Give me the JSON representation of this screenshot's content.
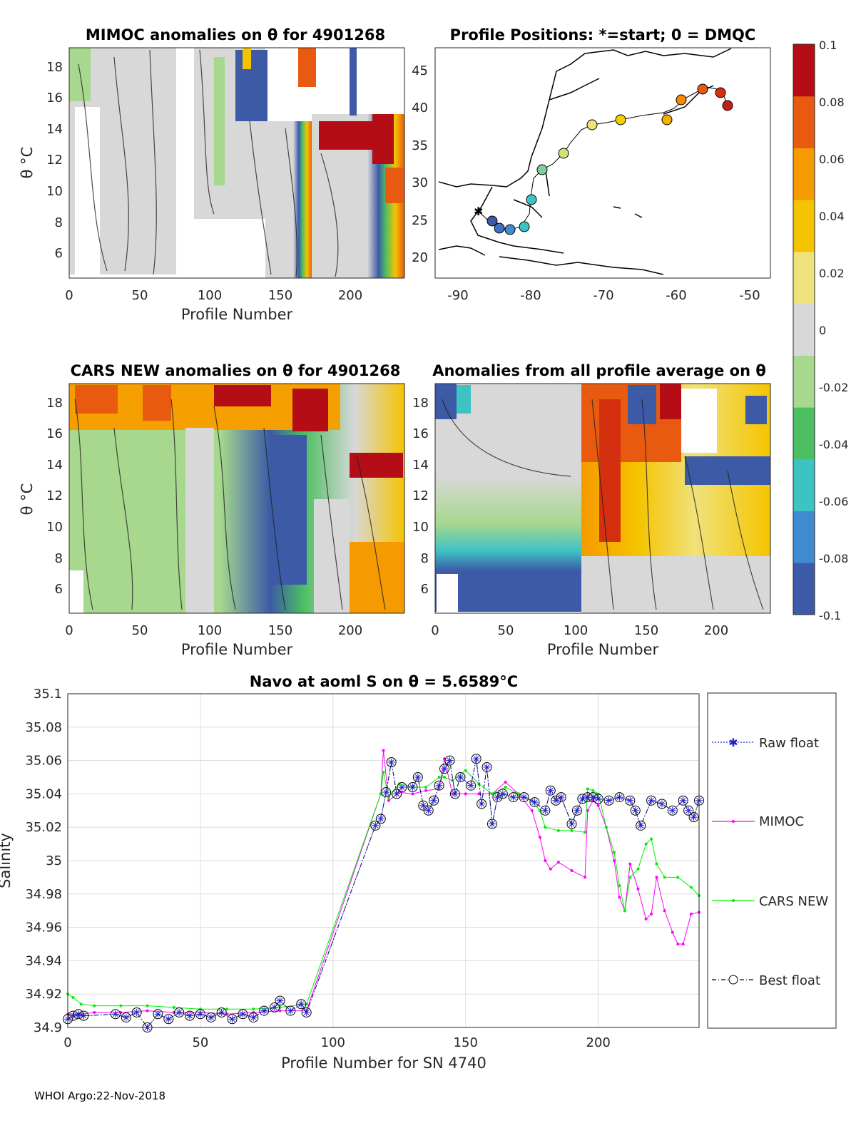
{
  "footer": "WHOI Argo:22-Nov-2018",
  "colorbar": {
    "ticks": [
      "0.1",
      "0.08",
      "0.06",
      "0.04",
      "0.02",
      "0",
      "-0.02",
      "-0.04",
      "-0.06",
      "-0.08",
      "-0.1"
    ],
    "colors": [
      "#3c5aa6",
      "#3f8ad0",
      "#3ec3c3",
      "#4dbf63",
      "#a7d88e",
      "#d8d8d8",
      "#f0e27a",
      "#f5c400",
      "#f59a00",
      "#e85a10",
      "#b40d16"
    ]
  },
  "panels": {
    "mimoc": {
      "title": "MIMOC anomalies on θ  for 4901268",
      "ylabel": "θ °C",
      "xlabel": "Profile Number",
      "xticks": [
        "0",
        "50",
        "100",
        "150",
        "200"
      ],
      "yticks": [
        "6",
        "8",
        "10",
        "12",
        "14",
        "16",
        "18"
      ]
    },
    "map": {
      "title": "Profile Positions: *=start; 0 = DMQC",
      "xticks": [
        "-90",
        "-80",
        "-70",
        "-60",
        "-50"
      ],
      "yticks": [
        "20",
        "25",
        "30",
        "35",
        "40",
        "45"
      ]
    },
    "cars": {
      "title": "CARS NEW anomalies on θ for 4901268",
      "ylabel": "θ °C",
      "xlabel": "Profile Number",
      "xticks": [
        "0",
        "50",
        "100",
        "150",
        "200"
      ],
      "yticks": [
        "6",
        "8",
        "10",
        "12",
        "14",
        "16",
        "18"
      ]
    },
    "allavg": {
      "title": "Anomalies from all profile average on θ",
      "xlabel": "Profile Number",
      "xticks": [
        "0",
        "50",
        "100",
        "150",
        "200"
      ],
      "yticks": [
        "6",
        "8",
        "10",
        "12",
        "14",
        "16",
        "18"
      ]
    }
  },
  "chart_data": {
    "type": "line",
    "title": "Navo at aoml S on θ = 5.6589°C",
    "xlabel": "Profile Number for SN 4740",
    "ylabel": "Salinity",
    "xlim": [
      0,
      238
    ],
    "ylim": [
      34.9,
      35.1
    ],
    "xticks": [
      0,
      50,
      100,
      150,
      200
    ],
    "yticks": [
      34.9,
      34.92,
      34.94,
      34.96,
      34.98,
      35,
      35.02,
      35.04,
      35.06,
      35.08,
      35.1
    ],
    "ytick_labels": [
      "34.9",
      "34.92",
      "34.94",
      "34.96",
      "34.98",
      "35",
      "35.02",
      "35.04",
      "35.06",
      "35.08",
      "35.1"
    ],
    "grid": true,
    "legend": [
      "Raw float",
      "MIMOC",
      "CARS NEW",
      "Best float"
    ],
    "legend_position": "outside-right",
    "series": [
      {
        "name": "Best float",
        "x": [
          0,
          2,
          4,
          6,
          18,
          22,
          26,
          30,
          34,
          38,
          42,
          46,
          50,
          54,
          58,
          62,
          66,
          70,
          74,
          78,
          80,
          84,
          88,
          90,
          116,
          118,
          120,
          122,
          124,
          126,
          130,
          132,
          134,
          136,
          138,
          140,
          142,
          144,
          146,
          148,
          152,
          154,
          156,
          158,
          160,
          162,
          164,
          168,
          172,
          176,
          180,
          182,
          184,
          186,
          190,
          192,
          194,
          196,
          198,
          200,
          204,
          208,
          212,
          214,
          216,
          220,
          224,
          228,
          232,
          234,
          236,
          238
        ],
        "y": [
          34.905,
          34.907,
          34.908,
          34.907,
          34.908,
          34.906,
          34.909,
          34.9,
          34.908,
          34.905,
          34.909,
          34.907,
          34.908,
          34.906,
          34.909,
          34.905,
          34.908,
          34.906,
          34.91,
          34.912,
          34.916,
          34.91,
          34.914,
          34.909,
          35.021,
          35.025,
          35.041,
          35.059,
          35.04,
          35.044,
          35.044,
          35.05,
          35.033,
          35.03,
          35.036,
          35.045,
          35.055,
          35.06,
          35.04,
          35.05,
          35.045,
          35.061,
          35.034,
          35.056,
          35.022,
          35.038,
          35.04,
          35.038,
          35.038,
          35.035,
          35.03,
          35.042,
          35.036,
          35.038,
          35.022,
          35.03,
          35.037,
          35.038,
          35.038,
          35.037,
          35.036,
          35.038,
          35.036,
          35.03,
          35.021,
          35.036,
          35.034,
          35.03,
          35.036,
          35.03,
          35.026,
          35.036
        ]
      },
      {
        "name": "Raw float",
        "x": [
          0,
          2,
          4,
          6,
          18,
          22,
          26,
          30,
          34,
          38,
          42,
          46,
          50,
          54,
          58,
          62,
          66,
          70,
          74,
          78,
          80,
          84,
          88,
          90,
          116,
          118,
          120,
          122,
          124,
          126,
          130,
          132,
          134,
          136,
          138,
          140,
          142,
          144,
          146,
          148,
          152,
          154,
          156,
          158,
          160,
          162,
          164,
          168,
          172,
          176,
          180,
          182,
          184,
          186,
          190,
          192,
          194,
          196,
          198,
          200,
          204,
          208,
          212,
          214,
          216,
          220,
          224,
          228,
          232,
          234,
          236,
          238
        ],
        "y": [
          34.905,
          34.907,
          34.908,
          34.907,
          34.908,
          34.906,
          34.909,
          34.9,
          34.908,
          34.905,
          34.909,
          34.907,
          34.908,
          34.906,
          34.909,
          34.905,
          34.908,
          34.906,
          34.91,
          34.912,
          34.916,
          34.91,
          34.914,
          34.909,
          35.021,
          35.025,
          35.041,
          35.059,
          35.04,
          35.044,
          35.044,
          35.05,
          35.033,
          35.03,
          35.036,
          35.045,
          35.055,
          35.06,
          35.04,
          35.05,
          35.045,
          35.061,
          35.034,
          35.056,
          35.022,
          35.038,
          35.04,
          35.038,
          35.038,
          35.035,
          35.03,
          35.042,
          35.036,
          35.038,
          35.022,
          35.03,
          35.037,
          35.038,
          35.038,
          35.037,
          35.036,
          35.038,
          35.036,
          35.03,
          35.021,
          35.036,
          35.034,
          35.03,
          35.036,
          35.03,
          35.026,
          35.036
        ]
      },
      {
        "name": "MIMOC",
        "x": [
          0,
          5,
          10,
          20,
          30,
          40,
          50,
          60,
          70,
          80,
          90,
          118,
          119,
          121,
          125,
          130,
          135,
          140,
          142,
          145,
          150,
          155,
          160,
          165,
          170,
          175,
          178,
          180,
          182,
          185,
          190,
          195,
          196,
          198,
          200,
          203,
          206,
          208,
          210,
          212,
          215,
          218,
          220,
          222,
          225,
          228,
          230,
          232,
          235,
          238
        ],
        "y": [
          34.908,
          34.908,
          34.909,
          34.909,
          34.91,
          34.909,
          34.909,
          34.908,
          34.909,
          34.91,
          34.91,
          35.04,
          35.066,
          35.036,
          35.041,
          35.04,
          35.042,
          35.043,
          35.061,
          35.04,
          35.04,
          35.04,
          35.04,
          35.047,
          35.04,
          35.03,
          35.014,
          35.0,
          34.995,
          34.999,
          34.994,
          34.99,
          35.03,
          35.036,
          35.033,
          35.02,
          35.0,
          34.978,
          34.97,
          34.998,
          34.983,
          34.965,
          34.968,
          34.99,
          34.97,
          34.957,
          34.95,
          34.95,
          34.968,
          34.969
        ]
      },
      {
        "name": "CARS NEW",
        "x": [
          0,
          2,
          5,
          10,
          20,
          30,
          40,
          50,
          60,
          70,
          80,
          90,
          118,
          119,
          121,
          125,
          130,
          135,
          140,
          142,
          145,
          150,
          155,
          160,
          165,
          170,
          175,
          178,
          180,
          185,
          190,
          195,
          196,
          198,
          200,
          203,
          206,
          208,
          210,
          212,
          215,
          218,
          220,
          222,
          225,
          230,
          235,
          238
        ],
        "y": [
          34.92,
          34.918,
          34.914,
          34.913,
          34.913,
          34.913,
          34.912,
          34.911,
          34.911,
          34.911,
          34.912,
          34.914,
          35.04,
          35.053,
          35.038,
          35.046,
          35.044,
          35.044,
          35.05,
          35.05,
          35.048,
          35.054,
          35.046,
          35.04,
          35.044,
          35.04,
          35.036,
          35.03,
          35.02,
          35.018,
          35.018,
          35.017,
          35.043,
          35.042,
          35.04,
          35.02,
          35.005,
          34.985,
          34.97,
          34.99,
          34.995,
          35.01,
          35.013,
          34.998,
          34.99,
          34.99,
          34.984,
          34.979
        ]
      }
    ]
  }
}
